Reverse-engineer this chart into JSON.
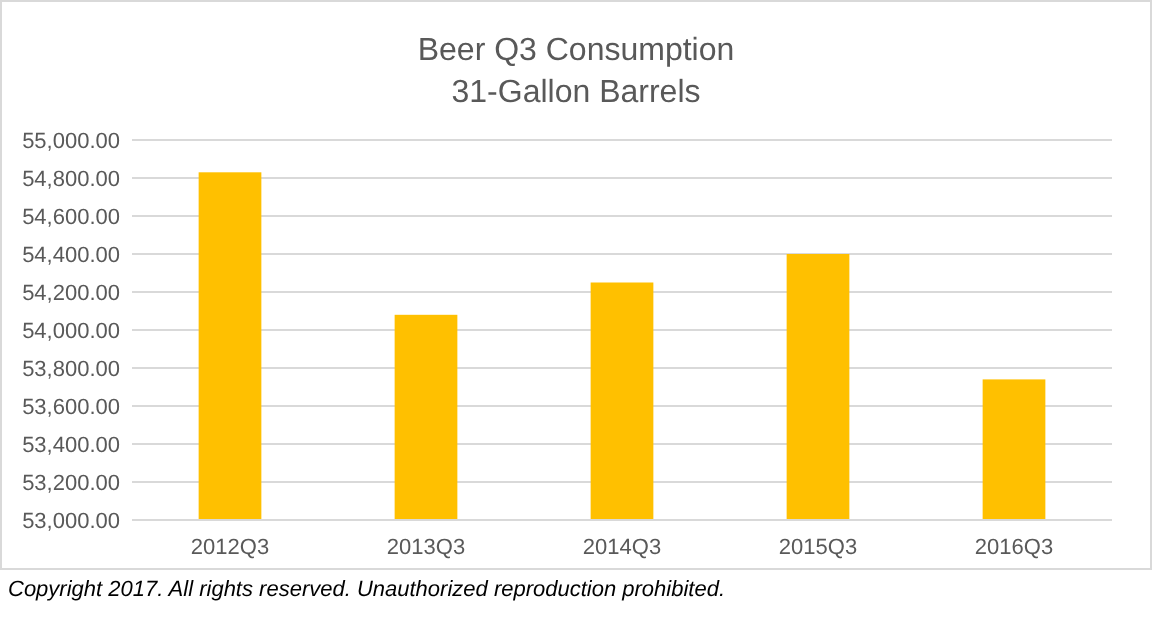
{
  "chart_data": {
    "type": "bar",
    "title": "Beer Q3 Consumption",
    "subtitle": "31-Gallon Barrels",
    "categories": [
      "2012Q3",
      "2013Q3",
      "2014Q3",
      "2015Q3",
      "2016Q3"
    ],
    "values": [
      54830,
      54080,
      54250,
      54400,
      53740
    ],
    "color": "#ffc000",
    "ylim": [
      53000,
      55000
    ],
    "yticks": [
      {
        "value": 53000,
        "label": "53,000.00"
      },
      {
        "value": 53200,
        "label": "53,200.00"
      },
      {
        "value": 53400,
        "label": "53,400.00"
      },
      {
        "value": 53600,
        "label": "53,600.00"
      },
      {
        "value": 53800,
        "label": "53,800.00"
      },
      {
        "value": 54000,
        "label": "54,000.00"
      },
      {
        "value": 54200,
        "label": "54,200.00"
      },
      {
        "value": 54400,
        "label": "54,400.00"
      },
      {
        "value": 54600,
        "label": "54,600.00"
      },
      {
        "value": 54800,
        "label": "54,800.00"
      },
      {
        "value": 55000,
        "label": "55,000.00"
      }
    ],
    "grid": "y",
    "annotations": [
      "Copyright 2017.  All rights reserved. Unauthorized reproduction prohibited."
    ]
  }
}
